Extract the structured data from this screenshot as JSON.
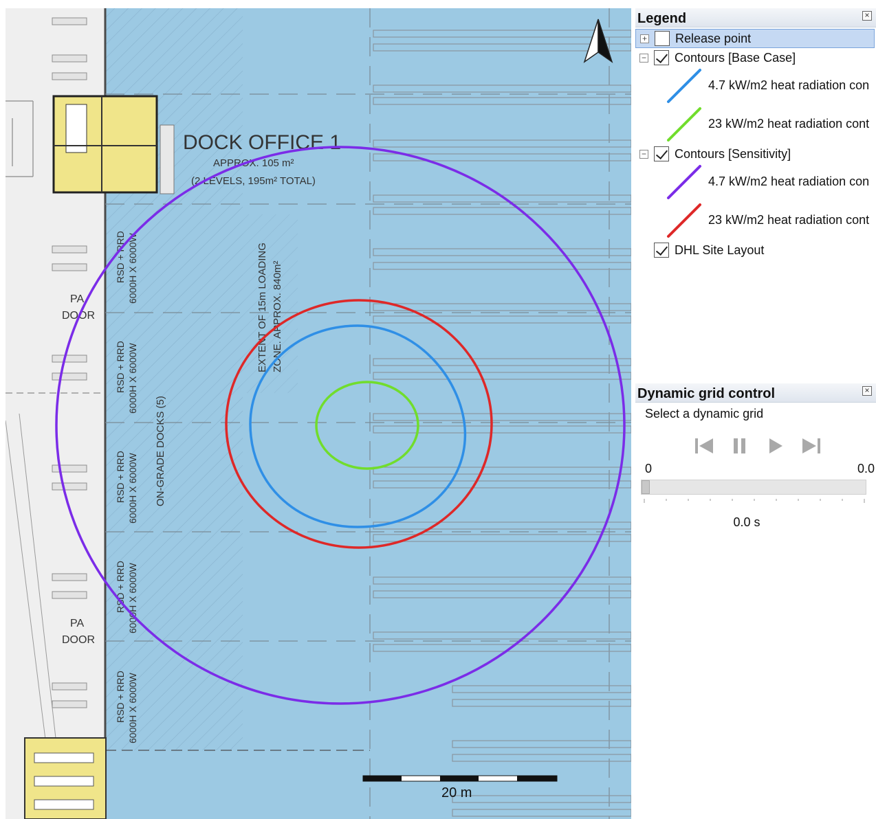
{
  "map": {
    "labels": {
      "dock_office": "DOCK OFFICE 1",
      "approx_area": "APPROX. 105 m²",
      "levels": "(2 LEVELS, 195m² TOTAL)",
      "loading_zone_1": "EXTENT OF 15m LOADING",
      "loading_zone_2": "ZONE. APPROX. 840m²",
      "on_grade_docks": "ON-GRADE DOCKS (5)",
      "pa": "PA",
      "door": "DOOR",
      "rsd": "RSD + RRD",
      "dims": "6000H X 6000W"
    },
    "scale_bar_label": "20 m",
    "colors": {
      "water_area": "#9cc9e3",
      "contour_base_47": "#2f8fe6",
      "contour_base_23": "#71dd2c",
      "contour_sens_47": "#7b2ce8",
      "contour_sens_23": "#de2828"
    }
  },
  "legend": {
    "title": "Legend",
    "close_icon": "close-icon",
    "items": [
      {
        "label": "Release point",
        "checked": false,
        "selected": true
      },
      {
        "label": "Contours [Base Case]",
        "checked": true,
        "selected": false
      },
      {
        "label": "4.7 kW/m2 heat radiation con"
      },
      {
        "label": "23 kW/m2 heat radiation cont"
      },
      {
        "label": "Contours [Sensitivity]",
        "checked": true,
        "selected": false
      },
      {
        "label": "4.7 kW/m2 heat radiation con"
      },
      {
        "label": "23 kW/m2 heat radiation cont"
      },
      {
        "label": "DHL Site Layout",
        "checked": true,
        "selected": false
      }
    ]
  },
  "grid_control": {
    "title": "Dynamic grid control",
    "prompt": "Select a dynamic grid",
    "range_min": "0",
    "range_max": "0.0",
    "time": "0.0  s",
    "slider_position": 0
  }
}
